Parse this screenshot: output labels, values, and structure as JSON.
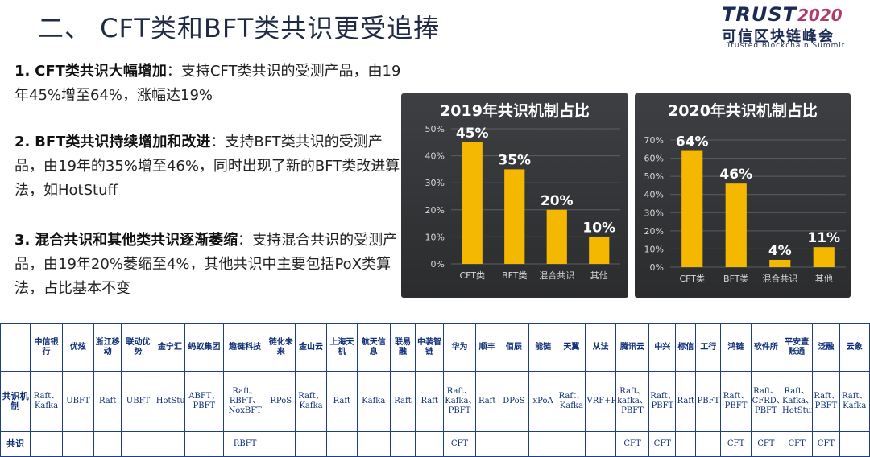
{
  "slide": {
    "title": "二、 CFT类和BFT类共识更受追捧"
  },
  "logo": {
    "trust": "TRUST",
    "year": "2020",
    "cn": "可信区块链峰会",
    "en": "Trusted Blockchain Summit"
  },
  "points": [
    {
      "num": "1.",
      "head": "CFT类共识大幅增加",
      "body": "：支持CFT类共识的受测产品，由19年45%增至64%，涨幅达19%"
    },
    {
      "num": "2.",
      "head": "BFT类共识持续增加和改进",
      "body": "：支持BFT类共识的受测产品，由19年的35%增至46%，同时出现了新的BFT类改进算法，如HotStuff"
    },
    {
      "num": "3.",
      "head": "混合共识和其他类共识逐渐萎缩",
      "body": "：支持混合共识的受测产品，由19年20%萎缩至4%，其他共识中主要包括PoX类算法，占比基本不变"
    }
  ],
  "chart_data": [
    {
      "type": "bar",
      "title": "2019年共识机制占比",
      "categories": [
        "CFT类",
        "BFT类",
        "混合共识",
        "其他"
      ],
      "values": [
        45,
        35,
        20,
        10
      ],
      "data_labels": [
        "45%",
        "35%",
        "20%",
        "10%"
      ],
      "ylim": [
        0,
        50
      ],
      "yticks": [
        "0%",
        "10%",
        "20%",
        "30%",
        "40%",
        "50%"
      ],
      "ytick_values": [
        0,
        10,
        20,
        30,
        40,
        50
      ],
      "bar_color": "#f5b800",
      "grid": true
    },
    {
      "type": "bar",
      "title": "2020年共识机制占比",
      "categories": [
        "CFT类",
        "BFT类",
        "混合共识",
        "其他"
      ],
      "values": [
        64,
        46,
        4,
        11
      ],
      "data_labels": [
        "64%",
        "46%",
        "4%",
        "11%"
      ],
      "ylim": [
        0,
        70
      ],
      "yticks": [
        "0%",
        "10%",
        "20%",
        "30%",
        "40%",
        "50%",
        "60%",
        "70%"
      ],
      "ytick_values": [
        0,
        10,
        20,
        30,
        40,
        50,
        60,
        70
      ],
      "bar_color": "#f5b800",
      "grid": true
    }
  ],
  "table": {
    "row_header_top": "",
    "companies": [
      "中信银行",
      "优炫",
      "浙江移动",
      "联动优势",
      "金宁汇",
      "蚂蚁集团",
      "趣链科技",
      "链化未来",
      "金山云",
      "上海天机",
      "航天信息",
      "联易融",
      "中装智链",
      "华为",
      "顺丰",
      "佰辰",
      "能链",
      "天翼",
      "从法",
      "腾讯云",
      "中兴",
      "标信",
      "工行",
      "鸿链",
      "软件所",
      "平安壹账通",
      "泛融",
      "云象"
    ],
    "row1_header": "共识机制",
    "row1": [
      "Raft、Kafka",
      "UBFT",
      "Raft",
      "UBFT",
      "HotStuff",
      "ABFT、PBFT",
      "Raft、RBFT、NoxBFT",
      "RPoS",
      "Raft、Kafka",
      "Raft",
      "Kafka",
      "Raft",
      "Raft",
      "Raft、Kafka、PBFT",
      "Raft",
      "DPoS",
      "xPoA",
      "Raft、Kafka",
      "VRF+PBFT",
      "Raft、kafka、PBFT",
      "Raft、PBFT",
      "Raft",
      "PBFT",
      "Raft、PBFT",
      "Raft、CFRD、PBFT",
      "Raft、Kafka、HotStuff",
      "Raft、PBFT",
      "Raft、Kafka"
    ],
    "row2_header": "共识",
    "row2": [
      "",
      "",
      "",
      "",
      "",
      "",
      "RBFT",
      "",
      "",
      "",
      "",
      "",
      "",
      "CFT",
      "",
      "",
      "",
      "",
      "",
      "CFT",
      "CFT",
      "",
      "",
      "CFT",
      "CFT",
      "CFT",
      "CFT",
      ""
    ]
  }
}
